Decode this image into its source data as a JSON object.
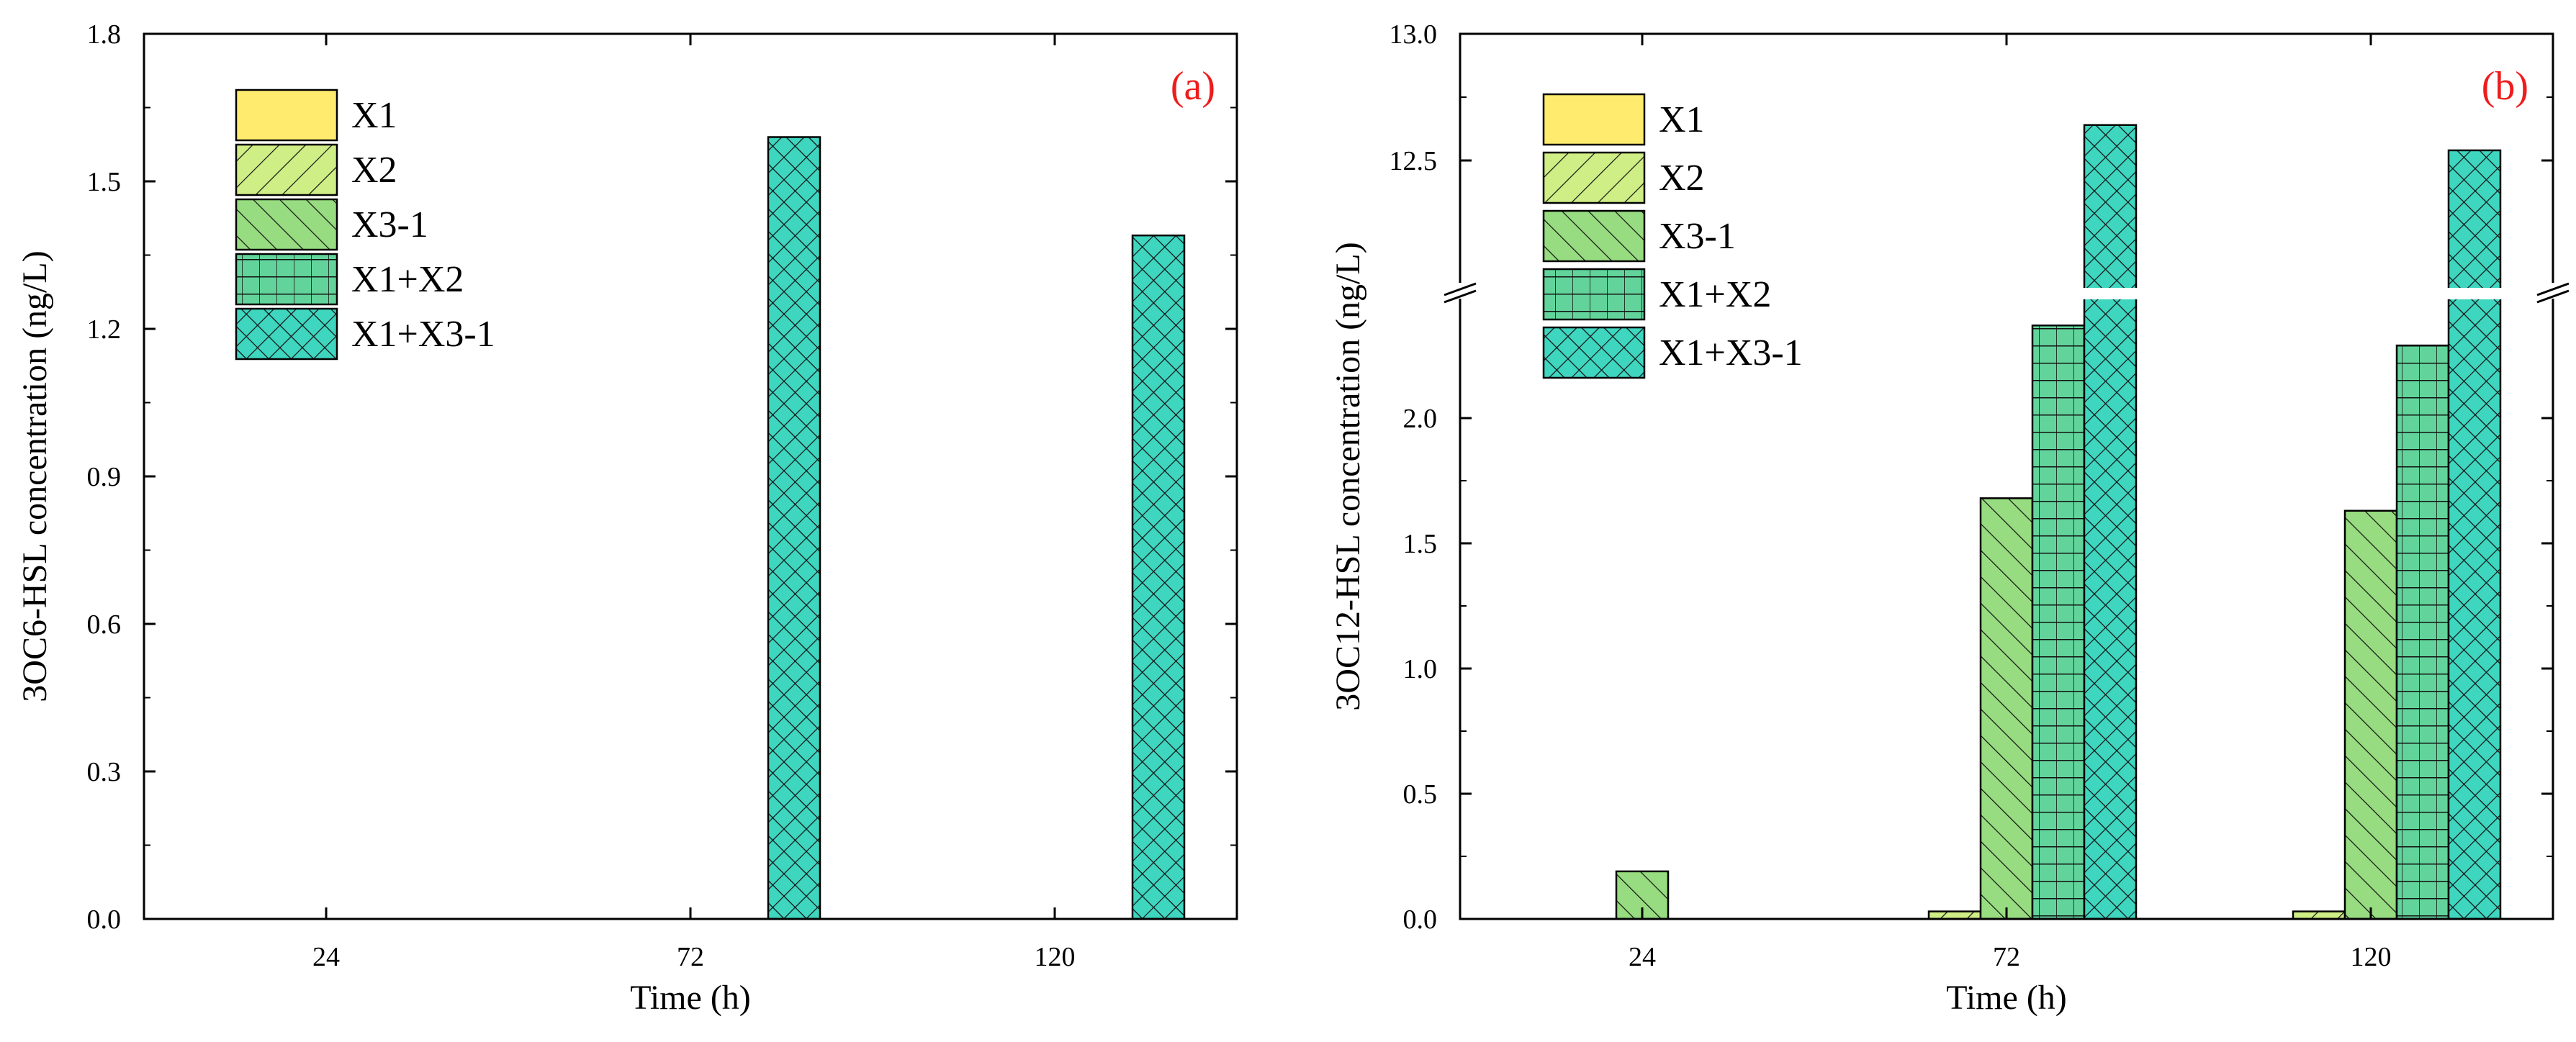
{
  "colors": {
    "X1": "#ffec6e",
    "X2": "#cfee86",
    "X3-1": "#97dc80",
    "X1+X2": "#62d49b",
    "X1+X3-1": "#3fd6c0",
    "panel_label": "#ee1c1c"
  },
  "patterns": {
    "X1": "none",
    "X2": "forward-diagonal",
    "X3-1": "back-diagonal",
    "X1+X2": "grid",
    "X1+X3-1": "crosshatch"
  },
  "chart_data": [
    {
      "type": "bar",
      "panel_label": "(a)",
      "xlabel": "Time (h)",
      "ylabel": "3OC6-HSL concentration (ng/L)",
      "categories": [
        "24",
        "72",
        "120"
      ],
      "ylim": [
        0,
        1.8
      ],
      "yticks": [
        "0.0",
        "0.3",
        "0.6",
        "0.9",
        "1.2",
        "1.5",
        "1.8"
      ],
      "legend_position": "top-left",
      "series": [
        {
          "name": "X1",
          "values": [
            0,
            0,
            0
          ]
        },
        {
          "name": "X2",
          "values": [
            0,
            0,
            0
          ]
        },
        {
          "name": "X3-1",
          "values": [
            0,
            0,
            0
          ]
        },
        {
          "name": "X1+X2",
          "values": [
            0,
            0,
            0
          ]
        },
        {
          "name": "X1+X3-1",
          "values": [
            0,
            1.59,
            1.39
          ]
        }
      ]
    },
    {
      "type": "bar",
      "panel_label": "(b)",
      "xlabel": "Time (h)",
      "ylabel": "3OC12-HSL concentration (ng/L)",
      "categories": [
        "24",
        "72",
        "120"
      ],
      "ylim": [
        0,
        13.0
      ],
      "axis_break": [
        2.4,
        12.0
      ],
      "yticks": [
        "0.0",
        "0.5",
        "1.0",
        "1.5",
        "2.0",
        "12.5",
        "13.0"
      ],
      "legend_position": "top-left",
      "series": [
        {
          "name": "X1",
          "values": [
            0,
            0,
            0
          ]
        },
        {
          "name": "X2",
          "values": [
            0,
            0.03,
            0.03
          ]
        },
        {
          "name": "X3-1",
          "values": [
            0.19,
            1.68,
            1.63
          ]
        },
        {
          "name": "X1+X2",
          "values": [
            0,
            2.37,
            2.29
          ]
        },
        {
          "name": "X1+X3-1",
          "values": [
            0,
            12.64,
            12.54
          ]
        }
      ]
    }
  ]
}
